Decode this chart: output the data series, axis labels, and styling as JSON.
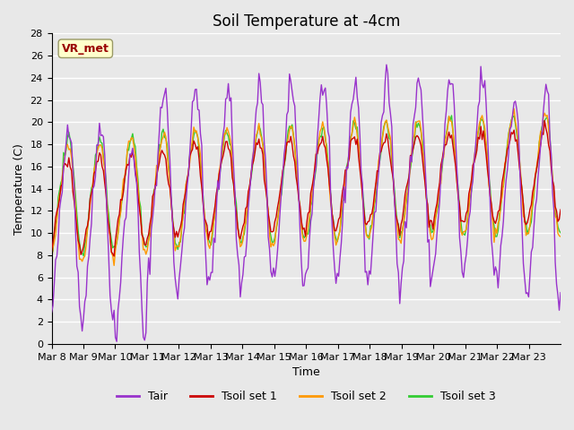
{
  "title": "Soil Temperature at -4cm",
  "xlabel": "Time",
  "ylabel": "Temperature (C)",
  "ylim": [
    0,
    28
  ],
  "yticks": [
    0,
    2,
    4,
    6,
    8,
    10,
    12,
    14,
    16,
    18,
    20,
    22,
    24,
    26,
    28
  ],
  "xtick_labels": [
    "Mar 8",
    "Mar 9",
    "Mar 10",
    "Mar 11",
    "Mar 12",
    "Mar 13",
    "Mar 14",
    "Mar 15",
    "Mar 16",
    "Mar 17",
    "Mar 18",
    "Mar 19",
    "Mar 20",
    "Mar 21",
    "Mar 22",
    "Mar 23"
  ],
  "num_days": 16,
  "annotation_text": "VR_met",
  "annotation_bg": "#ffffcc",
  "annotation_fg": "#990000",
  "colors": {
    "Tair": "#9933cc",
    "Tsoil1": "#cc0000",
    "Tsoil2": "#ff9900",
    "Tsoil3": "#33cc33"
  },
  "background_color": "#e8e8e8",
  "plot_bg": "#e8e8e8",
  "grid_color": "#ffffff",
  "fig_width": 6.4,
  "fig_height": 4.8,
  "dpi": 100
}
